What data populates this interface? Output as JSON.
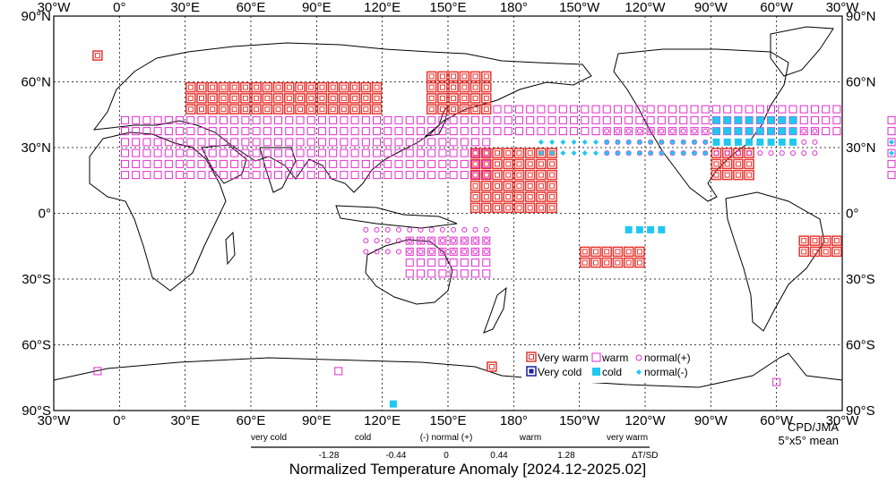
{
  "map": {
    "title": "Normalized Temperature Anomaly [2024.12-2025.02]",
    "credit_line1": "CPD/JMA",
    "credit_line2": "5°x5° mean",
    "lon_ticks": [
      "30°W",
      "0°",
      "30°E",
      "60°E",
      "90°E",
      "120°E",
      "150°E",
      "180°",
      "150°W",
      "120°W",
      "90°W",
      "60°W",
      "30°W"
    ],
    "lat_ticks": [
      "90°N",
      "60°N",
      "30°N",
      "0°",
      "30°S",
      "60°S",
      "90°S"
    ],
    "legend": {
      "very_warm": "Very warm",
      "warm": "warm",
      "normal_plus": "normal(+)",
      "very_cold": "Very cold",
      "cold": "cold",
      "normal_minus": "normal(-)"
    },
    "scale": {
      "categories": [
        "very cold",
        "cold",
        "(-) normal (+)",
        "warm",
        "very warm"
      ],
      "thresholds": [
        "-1.28",
        "-0.44",
        "0",
        "0.44",
        "1.28"
      ],
      "unit": "ΔT/SD"
    },
    "colors": {
      "very_warm": "#e8342f",
      "warm": "#e22ccd",
      "very_cold": "#1a1aaa",
      "cold": "#20c8f0",
      "land": "#000000",
      "grid": "#000000"
    }
  }
}
